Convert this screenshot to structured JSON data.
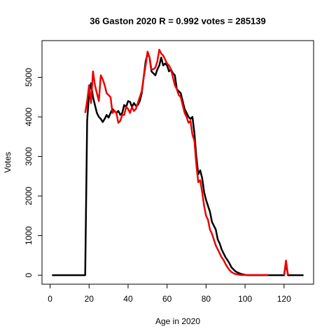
{
  "chart_data": {
    "type": "line",
    "title": "36 Gaston 2020 R = 0.992 votes = 285139",
    "x_label": "Age in 2020",
    "y_label": "Votes",
    "x": [
      1,
      2,
      3,
      4,
      5,
      6,
      7,
      8,
      9,
      10,
      11,
      12,
      13,
      14,
      15,
      16,
      17,
      18,
      19,
      20,
      21,
      22,
      23,
      24,
      25,
      26,
      27,
      28,
      29,
      30,
      31,
      32,
      33,
      34,
      35,
      36,
      37,
      38,
      39,
      40,
      41,
      42,
      43,
      44,
      45,
      46,
      47,
      48,
      49,
      50,
      51,
      52,
      53,
      54,
      55,
      56,
      57,
      58,
      59,
      60,
      61,
      62,
      63,
      64,
      65,
      66,
      67,
      68,
      69,
      70,
      71,
      72,
      73,
      74,
      75,
      76,
      77,
      78,
      79,
      80,
      81,
      82,
      83,
      84,
      85,
      86,
      87,
      88,
      89,
      90,
      91,
      92,
      93,
      94,
      95,
      96,
      97,
      98,
      99,
      100,
      101,
      102,
      103,
      104,
      105,
      106,
      107,
      108,
      109,
      110,
      111,
      112,
      113,
      114,
      115,
      116,
      117,
      118,
      119,
      120,
      121,
      122,
      123,
      124,
      125,
      126,
      127,
      128,
      129,
      130
    ],
    "series": [
      {
        "color": "#000000",
        "values": [
          0,
          0,
          0,
          0,
          0,
          0,
          0,
          0,
          0,
          0,
          0,
          0,
          0,
          0,
          0,
          0,
          0,
          0,
          3900,
          4600,
          4850,
          4500,
          4300,
          4100,
          4000,
          3950,
          3870,
          3950,
          4050,
          3980,
          4100,
          4200,
          4150,
          4100,
          4150,
          4050,
          4100,
          4300,
          4250,
          4400,
          4380,
          4250,
          4350,
          4280,
          4300,
          4400,
          4600,
          5000,
          5400,
          5600,
          5500,
          5150,
          5100,
          5050,
          5200,
          5300,
          5500,
          5300,
          5350,
          5300,
          5150,
          5200,
          5100,
          5050,
          4700,
          4650,
          4600,
          4400,
          4200,
          4100,
          4000,
          3950,
          4000,
          3600,
          3000,
          2550,
          2650,
          2450,
          2100,
          1900,
          1750,
          1600,
          1350,
          1250,
          1150,
          900,
          800,
          650,
          550,
          450,
          380,
          300,
          200,
          150,
          100,
          70,
          50,
          30,
          20,
          10,
          0,
          0,
          0,
          0,
          0,
          0,
          0,
          0,
          0,
          0,
          0,
          0,
          0,
          0,
          0,
          0,
          0,
          0,
          0,
          0,
          300,
          0,
          0,
          0,
          0,
          0,
          0,
          0,
          0,
          0
        ]
      },
      {
        "color": "#ee0000",
        "values": [
          null,
          null,
          null,
          null,
          null,
          null,
          null,
          null,
          null,
          null,
          null,
          null,
          null,
          null,
          null,
          null,
          null,
          4100,
          4400,
          4800,
          4350,
          5150,
          4800,
          4600,
          4400,
          5050,
          4950,
          4800,
          4600,
          4550,
          4500,
          4100,
          4150,
          4100,
          3850,
          3900,
          4050,
          4050,
          4250,
          4200,
          4100,
          4250,
          4150,
          4200,
          4350,
          4500,
          4650,
          5000,
          5300,
          5650,
          5500,
          5200,
          5200,
          5250,
          5400,
          5700,
          5600,
          5550,
          5450,
          5350,
          5300,
          5200,
          5000,
          4800,
          4700,
          4550,
          4500,
          4300,
          4100,
          4000,
          3850,
          3900,
          3550,
          3400,
          2800,
          2350,
          2400,
          2100,
          1750,
          1500,
          1400,
          1150,
          1050,
          900,
          750,
          650,
          550,
          450,
          380,
          280,
          200,
          130,
          80,
          50,
          30,
          20,
          10,
          5,
          5,
          5,
          5,
          5,
          5,
          5,
          5,
          5,
          5,
          5,
          5,
          5,
          5,
          5,
          null,
          null,
          null,
          null,
          null,
          null,
          null,
          0,
          370,
          0,
          null,
          null,
          null,
          null,
          null,
          null,
          null,
          null
        ]
      }
    ],
    "xlim": [
      -4.16,
      135.16
    ],
    "ylim": [
      -228,
      5928
    ],
    "xticks": [
      0,
      20,
      40,
      60,
      80,
      100,
      120
    ],
    "yticks": [
      0,
      1000,
      2000,
      3000,
      4000,
      5000
    ]
  }
}
